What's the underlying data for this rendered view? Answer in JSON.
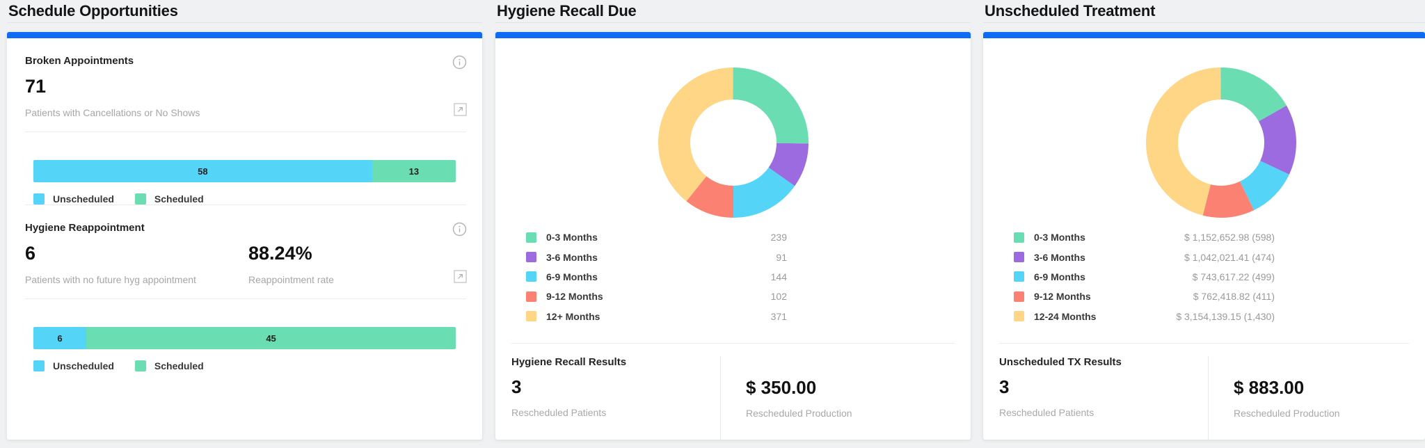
{
  "colors": {
    "accent_bar": "#0D6BF6",
    "page_bg": "#F0F1F2",
    "card_bg": "#FFFFFF",
    "series": {
      "green": "#6BDDB2",
      "purple": "#9B6BDF",
      "cyan": "#54D5F8",
      "red": "#FB8272",
      "yellow": "#FFD685"
    }
  },
  "icons": {
    "info": "circled-i-outline",
    "expand": "arrow-up-right-in-square"
  },
  "panels": {
    "schedule_opportunities": {
      "title": "Schedule Opportunities",
      "broken_appointments": {
        "label": "Broken Appointments",
        "value": "71",
        "description": "Patients with Cancellations or No Shows"
      },
      "hygiene_reappointment": {
        "label": "Hygiene Reappointment",
        "value": "6",
        "description": "Patients with no future hyg appointment",
        "rate_value": "88.24%",
        "rate_description": "Reappointment rate"
      }
    },
    "hygiene_recall_due": {
      "title": "Hygiene Recall Due",
      "results": {
        "heading": "Hygiene Recall Results",
        "patients_value": "3",
        "patients_label": "Rescheduled Patients",
        "production_value": "$ 350.00",
        "production_label": "Rescheduled Production"
      }
    },
    "unscheduled_treatment": {
      "title": "Unscheduled Treatment",
      "results": {
        "heading": "Unscheduled TX Results",
        "patients_value": "3",
        "patients_label": "Rescheduled Patients",
        "production_value": "$ 883.00",
        "production_label": "Rescheduled Production"
      }
    }
  },
  "chart_data": {
    "broken_appointments_bar": {
      "type": "bar",
      "stacked": true,
      "categories": [
        "Unscheduled",
        "Scheduled"
      ],
      "values": [
        58,
        13
      ],
      "series_colors": [
        "cyan",
        "green"
      ]
    },
    "hygiene_reappointment_bar": {
      "type": "bar",
      "stacked": true,
      "categories": [
        "Unscheduled",
        "Scheduled"
      ],
      "values": [
        6,
        45
      ],
      "series_colors": [
        "cyan",
        "green"
      ]
    },
    "hygiene_recall_donut": {
      "type": "pie",
      "subtype": "donut",
      "start_angle_deg": 0,
      "direction": "clockwise",
      "categories": [
        "0-3 Months",
        "3-6 Months",
        "6-9 Months",
        "9-12 Months",
        "12+ Months"
      ],
      "values": [
        239,
        91,
        144,
        102,
        371
      ],
      "display_values": [
        "239",
        "91",
        "144",
        "102",
        "371"
      ],
      "series_colors": [
        "green",
        "purple",
        "cyan",
        "red",
        "yellow"
      ]
    },
    "unscheduled_treatment_donut": {
      "type": "pie",
      "subtype": "donut",
      "start_angle_deg": 0,
      "direction": "clockwise",
      "categories": [
        "0-3 Months",
        "3-6 Months",
        "6-9 Months",
        "9-12 Months",
        "12-24 Months"
      ],
      "values": [
        1152652.98,
        1042021.41,
        743617.22,
        762418.82,
        3154139.15
      ],
      "display_values": [
        "$ 1,152,652.98 (598)",
        "$ 1,042,021.41 (474)",
        "$ 743,617.22 (499)",
        "$ 762,418.82 (411)",
        "$ 3,154,139.15 (1,430)"
      ],
      "patient_counts": [
        598,
        474,
        499,
        411,
        1430
      ],
      "series_colors": [
        "green",
        "purple",
        "cyan",
        "red",
        "yellow"
      ]
    }
  }
}
